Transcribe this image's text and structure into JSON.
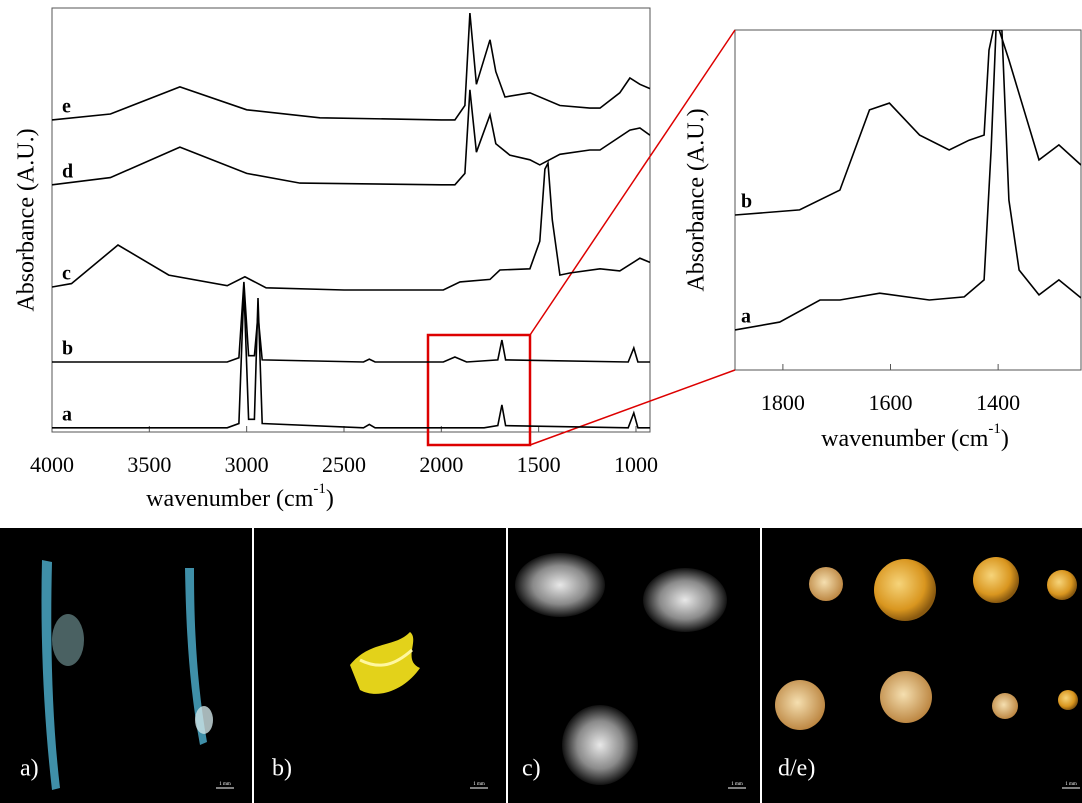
{
  "chart_data": [
    {
      "type": "line",
      "y_label": "Absorbance (A.U.)",
      "x_label": [
        "wavenumber (cm",
        "-1",
        ")"
      ],
      "xlim": [
        4000,
        928
      ],
      "xticks": [
        4000,
        3500,
        3000,
        2500,
        2000,
        1500,
        1000
      ],
      "ylim": [
        0,
        100
      ],
      "series": [
        {
          "name": "a",
          "color": "#000000",
          "x": [
            4000,
            3100,
            3040,
            3014,
            2990,
            2960,
            2942,
            2920,
            2400,
            2370,
            2340,
            1780,
            1710,
            1689,
            1670,
            1040,
            1011,
            990,
            928
          ],
          "values": [
            1,
            1,
            2,
            34,
            3,
            3,
            31.6,
            2,
            1,
            1.8,
            1,
            1,
            1.5,
            6.4,
            1.5,
            1,
            4.5,
            1,
            1
          ]
        },
        {
          "name": "b",
          "color": "#000000",
          "x": [
            4000,
            3100,
            3040,
            3014,
            2990,
            2960,
            2942,
            2920,
            2400,
            2370,
            2340,
            1990,
            1930,
            1870,
            1710,
            1689,
            1670,
            1040,
            1011,
            990,
            928
          ],
          "values": [
            16.5,
            16.5,
            17.5,
            35.4,
            18,
            18,
            27.6,
            17,
            16.5,
            17.2,
            16.5,
            16.5,
            17.7,
            16.5,
            17,
            21.7,
            17,
            16.5,
            19.8,
            16.5,
            16.5
          ]
        },
        {
          "name": "c",
          "color": "#000000",
          "x": [
            4000,
            3900,
            3661,
            3400,
            3100,
            3009,
            2900,
            2500,
            1990,
            1904,
            1750,
            1699,
            1545,
            1494,
            1468,
            1452,
            1430,
            1391,
            1340,
            1185,
            1083,
            980,
            928
          ],
          "values": [
            34.2,
            35,
            44.1,
            37,
            34.5,
            36.6,
            34,
            33.5,
            33.5,
            35.4,
            36,
            38.2,
            38.5,
            45,
            62,
            63.4,
            50,
            37,
            37.5,
            38.5,
            38,
            41,
            40
          ]
        },
        {
          "name": "d",
          "color": "#000000",
          "x": [
            4000,
            3700,
            3343,
            3000,
            2726,
            2000,
            1930,
            1879,
            1853,
            1820,
            1750,
            1720,
            1648,
            1545,
            1494,
            1391,
            1237,
            1185,
            1031,
            980,
            928
          ],
          "values": [
            58.3,
            60,
            67.2,
            61,
            58.7,
            58.3,
            58.3,
            61,
            80.7,
            66,
            74.8,
            68,
            65.3,
            64.2,
            63,
            65.5,
            66.5,
            66.5,
            71.2,
            71.7,
            70
          ]
        },
        {
          "name": "e",
          "color": "#000000",
          "x": [
            4000,
            3700,
            3343,
            3000,
            2624,
            2000,
            1930,
            1879,
            1853,
            1820,
            1750,
            1720,
            1673,
            1545,
            1391,
            1237,
            1185,
            1083,
            1031,
            980,
            928
          ],
          "values": [
            73.6,
            75,
            81.4,
            76,
            74.1,
            73.6,
            73.6,
            77,
            98.8,
            82,
            92.5,
            85,
            79,
            80,
            77,
            76.4,
            76.4,
            80,
            83.5,
            82,
            81
          ]
        }
      ]
    },
    {
      "type": "line",
      "y_label": "Absorbance (A.U.)",
      "x_label": [
        "wavenumber (cm",
        "-1",
        ")"
      ],
      "xlim": [
        1889,
        1246
      ],
      "xticks": [
        1800,
        1600,
        1400
      ],
      "ylim": [
        0,
        100
      ],
      "series": [
        {
          "name": "a",
          "color": "#000000",
          "x": [
            1889,
            1806,
            1731,
            1694,
            1620,
            1528,
            1463,
            1426,
            1413,
            1404,
            1393,
            1380,
            1361,
            1324,
            1287,
            1246
          ],
          "values": [
            11.8,
            14.1,
            20.6,
            20.6,
            22.6,
            20.6,
            21.5,
            26.5,
            64.7,
            100,
            100,
            50,
            29.4,
            22.1,
            26.5,
            21.2
          ]
        },
        {
          "name": "b",
          "color": "#000000",
          "x": [
            1889,
            1769,
            1694,
            1639,
            1602,
            1546,
            1491,
            1454,
            1426,
            1417,
            1409,
            1398,
            1380,
            1324,
            1287,
            1246
          ],
          "values": [
            45.6,
            47.1,
            52.9,
            76.5,
            78.5,
            69.1,
            64.7,
            67.6,
            69.1,
            94.1,
            100,
            100,
            91.2,
            61.8,
            66.2,
            60.3
          ]
        }
      ]
    }
  ],
  "photos": {
    "panels": [
      {
        "label": "a)",
        "scale_bar": "1 mm"
      },
      {
        "label": "b)",
        "scale_bar": "1 mm"
      },
      {
        "label": "c)",
        "scale_bar": "1 mm"
      },
      {
        "label": "d/e)",
        "scale_bar": "1 mm"
      }
    ]
  }
}
